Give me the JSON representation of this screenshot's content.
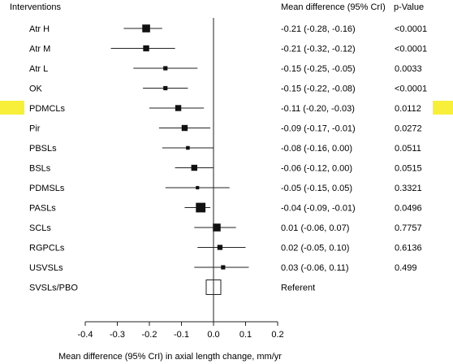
{
  "chart_data": {
    "type": "forest",
    "headers": {
      "interventions": "Interventions",
      "ci": "Mean difference (95% CrI)",
      "p": "p-Value"
    },
    "xlabel": "Mean difference (95% CrI) in axial length change, mm/yr",
    "xlim": [
      -0.4,
      0.2
    ],
    "ticks": [
      "-0.4",
      "-0.3",
      "-0.2",
      "-0.1",
      "0.0",
      "0.1",
      "0.2"
    ],
    "tick_values": [
      -0.4,
      -0.3,
      -0.2,
      -0.1,
      0.0,
      0.1,
      0.2
    ],
    "reference_line": 0.0,
    "highlight_color": "#f7ef3a",
    "highlight_row": "PDMCLs",
    "rows": [
      {
        "label": "Atr H",
        "mean": -0.21,
        "low": -0.28,
        "high": -0.16,
        "ci": "-0.21 (-0.28, -0.16)",
        "p": "<0.0001",
        "weight": 3
      },
      {
        "label": "Atr M",
        "mean": -0.21,
        "low": -0.32,
        "high": -0.12,
        "ci": "-0.21 (-0.32, -0.12)",
        "p": "<0.0001",
        "weight": 2
      },
      {
        "label": "Atr L",
        "mean": -0.15,
        "low": -0.25,
        "high": -0.05,
        "ci": "-0.15 (-0.25, -0.05)",
        "p": "0.0033",
        "weight": 1
      },
      {
        "label": "OK",
        "mean": -0.15,
        "low": -0.22,
        "high": -0.08,
        "ci": "-0.15 (-0.22, -0.08)",
        "p": "<0.0001",
        "weight": 1
      },
      {
        "label": "PDMCLs",
        "mean": -0.11,
        "low": -0.2,
        "high": -0.03,
        "ci": "-0.11 (-0.20, -0.03)",
        "p": "0.0112",
        "weight": 2
      },
      {
        "label": "Pir",
        "mean": -0.09,
        "low": -0.17,
        "high": -0.01,
        "ci": "-0.09 (-0.17, -0.01)",
        "p": "0.0272",
        "weight": 2
      },
      {
        "label": "PBSLs",
        "mean": -0.08,
        "low": -0.16,
        "high": 0.0,
        "ci": "-0.08 (-0.16, 0.00)",
        "p": "0.0511",
        "weight": 0.7
      },
      {
        "label": "BSLs",
        "mean": -0.06,
        "low": -0.12,
        "high": 0.0,
        "ci": "-0.06 (-0.12, 0.00)",
        "p": "0.0515",
        "weight": 2
      },
      {
        "label": "PDMSLs",
        "mean": -0.05,
        "low": -0.15,
        "high": 0.05,
        "ci": "-0.05 (-0.15, 0.05)",
        "p": "0.3321",
        "weight": 0.5
      },
      {
        "label": "PASLs",
        "mean": -0.04,
        "low": -0.09,
        "high": -0.01,
        "ci": "-0.04 (-0.09, -0.01)",
        "p": "0.0496",
        "weight": 4
      },
      {
        "label": "SCLs",
        "mean": 0.01,
        "low": -0.06,
        "high": 0.07,
        "ci": "0.01 (-0.06, 0.07)",
        "p": "0.7757",
        "weight": 3
      },
      {
        "label": "RGPCLs",
        "mean": 0.02,
        "low": -0.05,
        "high": 0.1,
        "ci": "0.02 (-0.05, 0.10)",
        "p": "0.6136",
        "weight": 1.5
      },
      {
        "label": "USVSLs",
        "mean": 0.03,
        "low": -0.06,
        "high": 0.11,
        "ci": "0.03 (-0.06, 0.11)",
        "p": "0.499",
        "weight": 1
      },
      {
        "label": "SVSLs/PBO",
        "mean": 0.0,
        "ci": "Referent",
        "p": "",
        "referent": true
      }
    ]
  }
}
